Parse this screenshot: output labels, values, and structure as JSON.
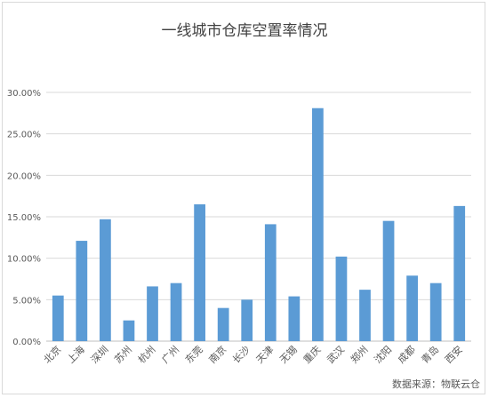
{
  "chart_data": {
    "type": "bar",
    "title": "一线城市仓库空置率情况",
    "categories": [
      "北京",
      "上海",
      "深圳",
      "苏州",
      "杭州",
      "广州",
      "东莞",
      "南京",
      "长沙",
      "天津",
      "无锡",
      "重庆",
      "武汉",
      "郑州",
      "沈阳",
      "成都",
      "青岛",
      "西安"
    ],
    "values": [
      5.5,
      12.1,
      14.7,
      2.5,
      6.6,
      7.0,
      16.5,
      4.0,
      5.0,
      14.1,
      5.4,
      28.1,
      10.2,
      6.2,
      14.5,
      7.9,
      7.0,
      16.3
    ],
    "y_unit": "%",
    "ylim": [
      0,
      30
    ],
    "yticks": [
      "0.00%",
      "5.00%",
      "10.00%",
      "15.00%",
      "20.00%",
      "25.00%",
      "30.00%"
    ],
    "grid": true,
    "legend": "none",
    "bar_color": "#5B9BD5",
    "source": "数据来源：物联云仓"
  }
}
